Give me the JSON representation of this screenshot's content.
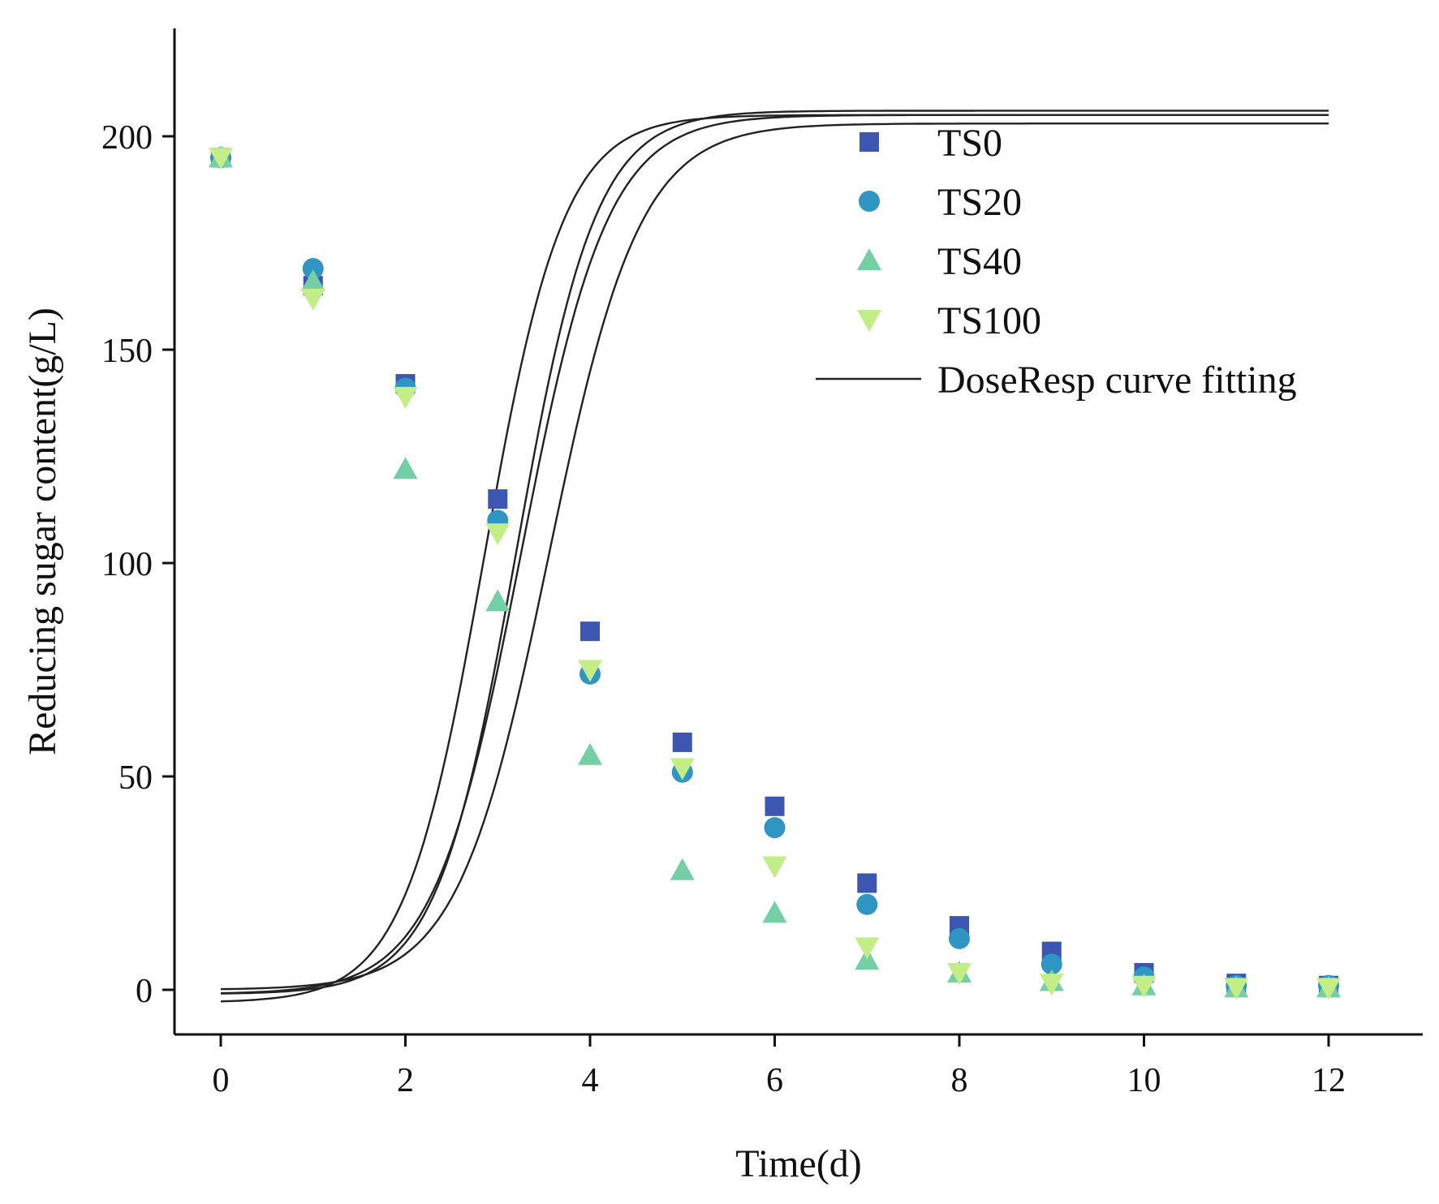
{
  "chart_data": {
    "type": "scatter",
    "title": "",
    "xlabel": "Time(d)",
    "ylabel": "Reducing sugar content(g/L)",
    "xlim": [
      -0.5,
      13
    ],
    "ylim": [
      -10,
      225
    ],
    "xticks": [
      0,
      2,
      4,
      6,
      8,
      10,
      12
    ],
    "yticks": [
      0,
      50,
      100,
      150,
      200
    ],
    "x": [
      0,
      1,
      2,
      3,
      4,
      5,
      6,
      7,
      8,
      9,
      10,
      11,
      12
    ],
    "legend_position": "top-right",
    "series": [
      {
        "name": "TS0",
        "marker": "square",
        "color": "#3d56b2",
        "values": [
          195,
          165,
          142,
          115,
          84,
          58,
          43,
          25,
          15,
          9,
          4,
          1.5,
          1
        ],
        "fit": {
          "A1": 203,
          "A2": 0,
          "LOGx0": 3.55,
          "p": -0.21
        }
      },
      {
        "name": "TS20",
        "marker": "circle",
        "color": "#2f96c4",
        "values": [
          195,
          169,
          141,
          110,
          74,
          51,
          38,
          20,
          12,
          6,
          3,
          1,
          1
        ],
        "fit": {
          "A1": 205,
          "A2": -1,
          "LOGx0": 3.25,
          "p": -0.22
        }
      },
      {
        "name": "TS40",
        "marker": "triangle-up",
        "color": "#74cfa4",
        "values": [
          195,
          166,
          122,
          91,
          55,
          28,
          18,
          7,
          4,
          2,
          1,
          0.5,
          0.5
        ],
        "fit": {
          "A1": 205,
          "A2": -3,
          "LOGx0": 2.85,
          "p": -0.24
        }
      },
      {
        "name": "TS100",
        "marker": "triangle-down",
        "color": "#c3ee87",
        "values": [
          195,
          162,
          139,
          107,
          75,
          52,
          29,
          10,
          4,
          1.5,
          1,
          0.5,
          0.5
        ],
        "fit": {
          "A1": 206,
          "A2": -1,
          "LOGx0": 3.2,
          "p": -0.24
        }
      }
    ],
    "fit_legend_label": "DoseResp curve fitting"
  }
}
